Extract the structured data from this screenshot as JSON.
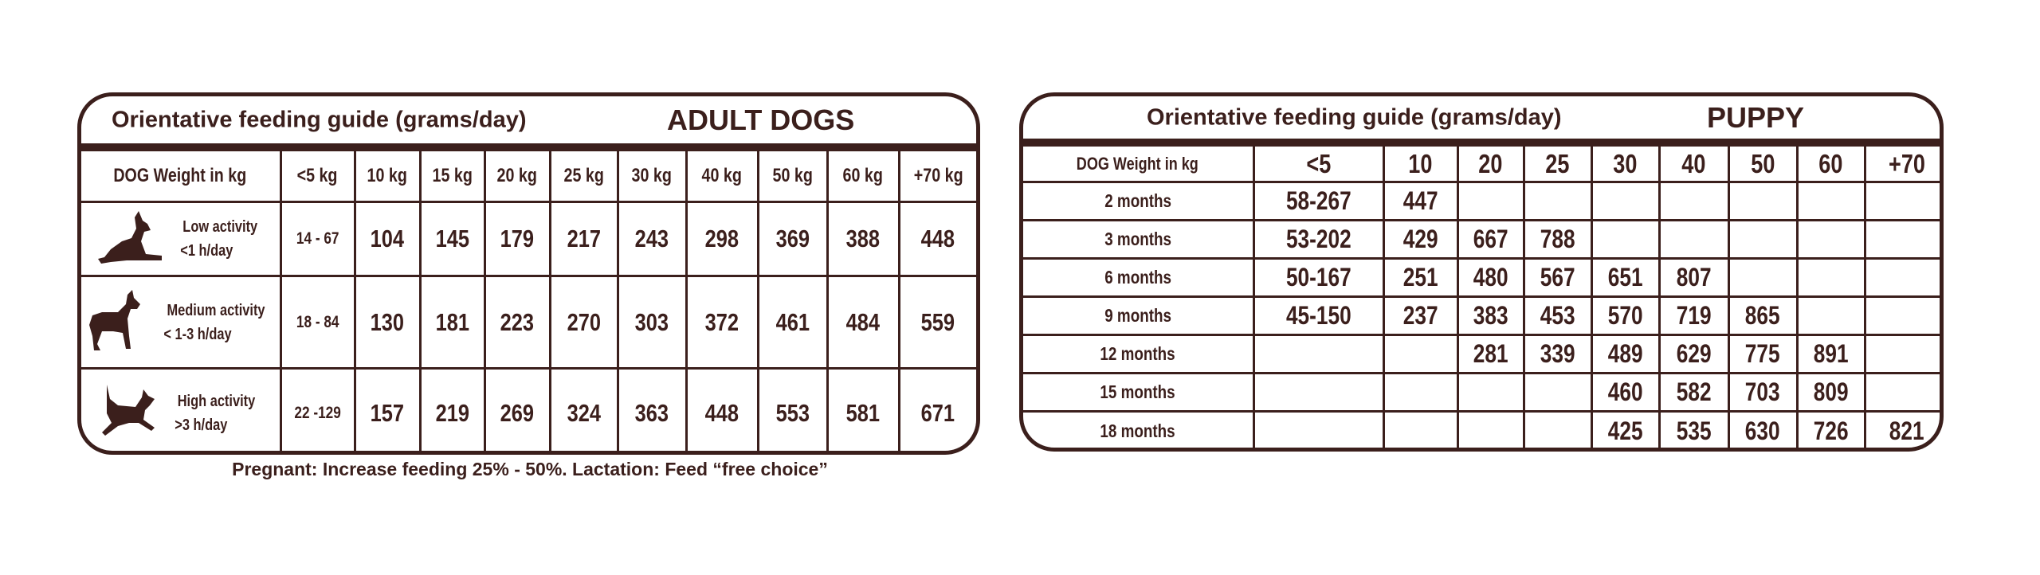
{
  "adult": {
    "guide_title": "Orientative feeding guide (grams/day)",
    "section_title": "ADULT DOGS",
    "header_label": "DOG Weight in kg",
    "weights": [
      "<5 kg",
      "10 kg",
      "15 kg",
      "20 kg",
      "25 kg",
      "30 kg",
      "40 kg",
      "50 kg",
      "60 kg",
      "+70 kg"
    ],
    "rows": [
      {
        "activity": "Low activity",
        "duration": "<1 h/day",
        "icon": "lying-dog-icon",
        "range": "14 - 67",
        "values": [
          "104",
          "145",
          "179",
          "217",
          "243",
          "298",
          "369",
          "388",
          "448"
        ]
      },
      {
        "activity": "Medium activity",
        "duration": "< 1-3 h/day",
        "icon": "standing-dog-icon",
        "range": "18 - 84",
        "values": [
          "130",
          "181",
          "223",
          "270",
          "303",
          "372",
          "461",
          "484",
          "559"
        ]
      },
      {
        "activity": "High activity",
        "duration": ">3 h/day",
        "icon": "running-dog-icon",
        "range": "22 -129",
        "values": [
          "157",
          "219",
          "269",
          "324",
          "363",
          "448",
          "553",
          "581",
          "671"
        ]
      }
    ],
    "footnote": "Pregnant: Increase feeding 25% - 50%. Lactation: Feed “free choice”"
  },
  "puppy": {
    "guide_title": "Orientative feeding guide (grams/day)",
    "section_title": "PUPPY",
    "header_label": "DOG Weight in kg",
    "weights": [
      "<5",
      "10",
      "20",
      "25",
      "30",
      "40",
      "50",
      "60",
      "+70"
    ],
    "rows": [
      {
        "age": "2 months",
        "values": [
          "58-267",
          "447",
          "",
          "",
          "",
          "",
          "",
          "",
          ""
        ]
      },
      {
        "age": "3 months",
        "values": [
          "53-202",
          "429",
          "667",
          "788",
          "",
          "",
          "",
          "",
          ""
        ]
      },
      {
        "age": "6 months",
        "values": [
          "50-167",
          "251",
          "480",
          "567",
          "651",
          "807",
          "",
          "",
          ""
        ]
      },
      {
        "age": "9 months",
        "values": [
          "45-150",
          "237",
          "383",
          "453",
          "570",
          "719",
          "865",
          "",
          ""
        ]
      },
      {
        "age": "12 months",
        "values": [
          "",
          "",
          "281",
          "339",
          "489",
          "629",
          "775",
          "891",
          ""
        ]
      },
      {
        "age": "15 months",
        "values": [
          "",
          "",
          "",
          "",
          "460",
          "582",
          "703",
          "809",
          ""
        ]
      },
      {
        "age": "18 months",
        "values": [
          "",
          "",
          "",
          "",
          "425",
          "535",
          "630",
          "726",
          "821"
        ]
      }
    ]
  },
  "colors": {
    "ink": "#3b1f1c",
    "background": "#ffffff"
  }
}
